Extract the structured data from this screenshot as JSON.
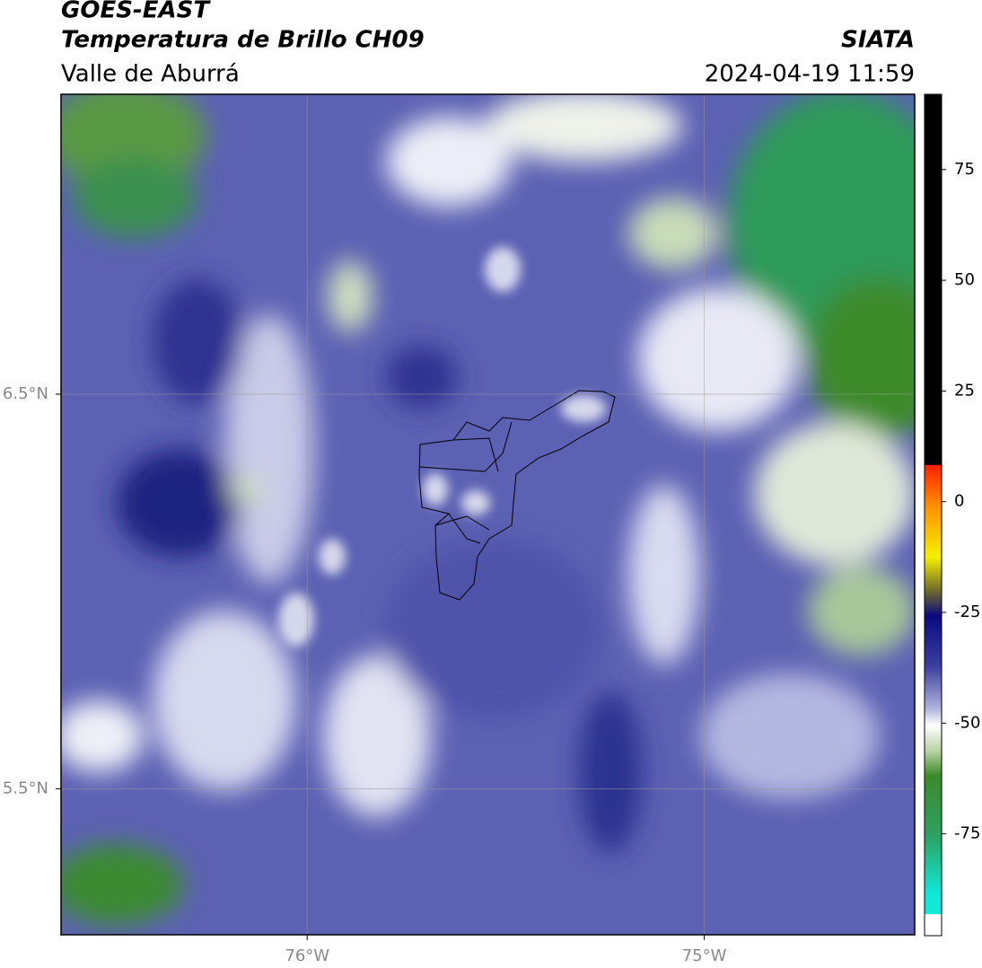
{
  "header": {
    "title": "GOES-EAST",
    "subtitle": "Temperatura de Brillo CH09",
    "region": "Valle de Aburrá",
    "agency": "SIATA",
    "datetime": "2024-04-19 11:59"
  },
  "map": {
    "xlim": [
      -76.62,
      -74.47
    ],
    "ylim": [
      5.13,
      7.26
    ],
    "xticks": [
      {
        "value": -76,
        "label": "76°W"
      },
      {
        "value": -75,
        "label": "75°W"
      }
    ],
    "yticks": [
      {
        "value": 6.5,
        "label": "6.5°N"
      },
      {
        "value": 5.5,
        "label": "5.5°N"
      }
    ],
    "grid": true
  },
  "colorbar": {
    "lim": [
      -98,
      92
    ],
    "ticks": [
      75,
      50,
      25,
      0,
      -25,
      -50,
      -75
    ]
  }
}
